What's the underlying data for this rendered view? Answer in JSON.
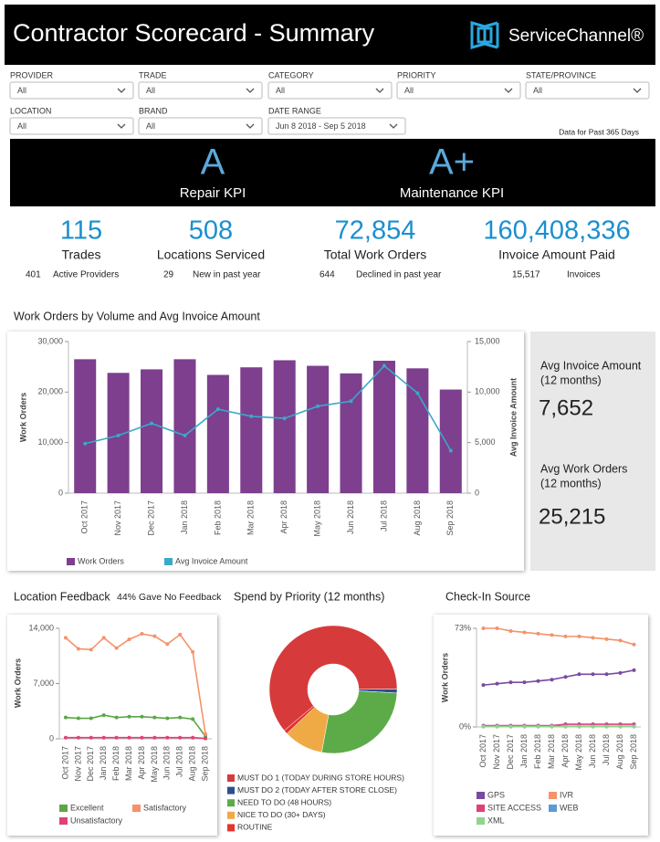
{
  "header": {
    "title": "Contractor Scorecard - Summary",
    "logo": "ServiceChannel®",
    "note": "Data for Past 365 Days"
  },
  "filters": [
    {
      "label": "PROVIDER",
      "value": "All"
    },
    {
      "label": "TRADE",
      "value": "All"
    },
    {
      "label": "CATEGORY",
      "value": "All"
    },
    {
      "label": "PRIORITY",
      "value": "All"
    },
    {
      "label": "STATE/PROVINCE",
      "value": "All"
    },
    {
      "label": "LOCATION",
      "value": "All"
    },
    {
      "label": "BRAND",
      "value": "All"
    },
    {
      "label": "DATE RANGE",
      "value": "Jun 8 2018 - Sep 5 2018"
    }
  ],
  "kpis": [
    {
      "grade": "A",
      "label": "Repair KPI"
    },
    {
      "grade": "A+",
      "label": "Maintenance KPI"
    }
  ],
  "stats": [
    {
      "value": "115",
      "label": "Trades",
      "sub_value": "401",
      "sub_label": "Active Providers"
    },
    {
      "value": "508",
      "label": "Locations Serviced",
      "sub_value": "29",
      "sub_label": "New in past year"
    },
    {
      "value": "72,854",
      "label": "Total Work Orders",
      "sub_value": "644",
      "sub_label": "Declined in past year"
    },
    {
      "value": "160,408,336",
      "label": "Invoice Amount Paid",
      "sub_value": "15,517",
      "sub_label": "Invoices"
    }
  ],
  "summary_panel": [
    {
      "label": "Avg Invoice Amount",
      "period": "(12 months)",
      "value": "7,652"
    },
    {
      "label": "Avg Work Orders",
      "period": "(12 months)",
      "value": "25,215"
    }
  ],
  "chart_data": [
    {
      "type": "combo",
      "title": "Work Orders by Volume and Avg Invoice Amount",
      "y_label": "Work Orders",
      "y2_label": "Avg Invoice Amount",
      "categories": [
        "Oct 2017",
        "Nov 2017",
        "Dec 2017",
        "Jan 2018",
        "Feb 2018",
        "Mar 2018",
        "Apr 2018",
        "May 2018",
        "Jun 2018",
        "Jul 2018",
        "Aug 2018",
        "Sep 2018"
      ],
      "series": [
        {
          "name": "Work Orders",
          "type": "bar",
          "color": "#7d3f8e",
          "values": [
            26500,
            23800,
            24500,
            26500,
            23400,
            24900,
            26300,
            25200,
            23700,
            26200,
            24700,
            20500
          ]
        },
        {
          "name": "Avg Invoice Amount",
          "type": "line",
          "axis": "y2",
          "color": "#3aa9c9",
          "values": [
            4900,
            5700,
            6900,
            5700,
            8300,
            7600,
            7400,
            8600,
            9100,
            12600,
            9900,
            4200
          ]
        }
      ],
      "ylim": [
        0,
        30000
      ],
      "yticks": [
        0,
        {
          "value": 10000,
          "label": "10,000"
        },
        {
          "value": 20000,
          "label": "20,000"
        },
        {
          "value": 30000,
          "label": "30,000"
        }
      ],
      "y2lim": [
        0,
        15000
      ],
      "y2ticks": [
        0,
        {
          "value": 5000,
          "label": "5,000"
        },
        {
          "value": 10000,
          "label": "10,000"
        },
        {
          "value": 15000,
          "label": "15,000"
        }
      ],
      "grid": false
    },
    {
      "type": "line",
      "title": "Location Feedback",
      "annotation": "44% Gave No Feedback",
      "y_label": "Work Orders",
      "categories": [
        "Oct 2017",
        "Nov 2017",
        "Dec 2017",
        "Jan 2018",
        "Feb 2018",
        "Mar 2018",
        "Apr 2018",
        "May 2018",
        "Jun 2018",
        "Jul 2018",
        "Aug 2018",
        "Sep 2018"
      ],
      "series": [
        {
          "name": "Excellent",
          "color": "#5aa845",
          "values": [
            2700,
            2600,
            2600,
            3000,
            2700,
            2800,
            2800,
            2700,
            2600,
            2700,
            2500,
            300
          ]
        },
        {
          "name": "Satisfactory",
          "color": "#f5926a",
          "values": [
            12800,
            11400,
            11300,
            12800,
            11500,
            12600,
            13300,
            13000,
            12000,
            13200,
            11000,
            600
          ]
        },
        {
          "name": "Unsatisfactory",
          "color": "#e0407a",
          "values": [
            150,
            150,
            150,
            150,
            150,
            150,
            150,
            150,
            150,
            150,
            150,
            50
          ]
        }
      ],
      "ylim": [
        0,
        14000
      ],
      "yticks": [
        0,
        {
          "value": 7000,
          "label": "7,000"
        },
        {
          "value": 14000,
          "label": "14,000"
        }
      ],
      "grid": false
    },
    {
      "type": "pie",
      "title": "Spend by Priority (12 months)",
      "categories": [
        "MUST DO 1 (TODAY DURING STORE HOURS)",
        "MUST DO 2 (TODAY AFTER STORE CLOSE)",
        "NEED TO DO (48 HOURS)",
        "NICE TO DO (30+ DAYS)",
        "ROUTINE"
      ],
      "values": [
        61,
        1,
        27,
        10,
        1
      ],
      "colors": [
        "#d73a3a",
        "#2b4f8f",
        "#5dab48",
        "#f0aa45",
        "#e5332f"
      ]
    },
    {
      "type": "line",
      "title": "Check-In Source",
      "y_label": "Work Orders",
      "categories": [
        "Oct 2017",
        "Nov 2017",
        "Dec 2017",
        "Jan 2018",
        "Feb 2018",
        "Mar 2018",
        "Apr 2018",
        "May 2018",
        "Jun 2018",
        "Jul 2018",
        "Aug 2018",
        "Sep 2018"
      ],
      "series": [
        {
          "name": "GPS",
          "color": "#7a4aa0",
          "values": [
            31,
            32,
            33,
            33,
            34,
            35,
            37,
            39,
            39,
            39,
            40,
            42
          ]
        },
        {
          "name": "IVR",
          "color": "#f5926a",
          "values": [
            73,
            73,
            71,
            70,
            69,
            68,
            67,
            67,
            66,
            65,
            64,
            61
          ]
        },
        {
          "name": "SITE ACCESS",
          "color": "#e0407a",
          "values": [
            1,
            1,
            1,
            1,
            1,
            1,
            2,
            2,
            2,
            2,
            2,
            2
          ]
        },
        {
          "name": "WEB",
          "color": "#5b9bd5",
          "values": [
            0.5,
            0.5,
            0.5,
            0.5,
            0.5,
            0.5,
            0.5,
            0.5,
            0.5,
            0.5,
            0.5,
            0.5
          ]
        },
        {
          "name": "XML",
          "color": "#8fd48f",
          "values": [
            0.2,
            0.2,
            0.2,
            0.2,
            0.2,
            0.2,
            0.2,
            0.2,
            0.2,
            0.2,
            0.2,
            0.2
          ]
        }
      ],
      "ylim": [
        0,
        73
      ],
      "yticks": [
        {
          "value": 0,
          "label": "0%"
        },
        {
          "value": 73,
          "label": "73%"
        }
      ],
      "grid": false
    }
  ]
}
